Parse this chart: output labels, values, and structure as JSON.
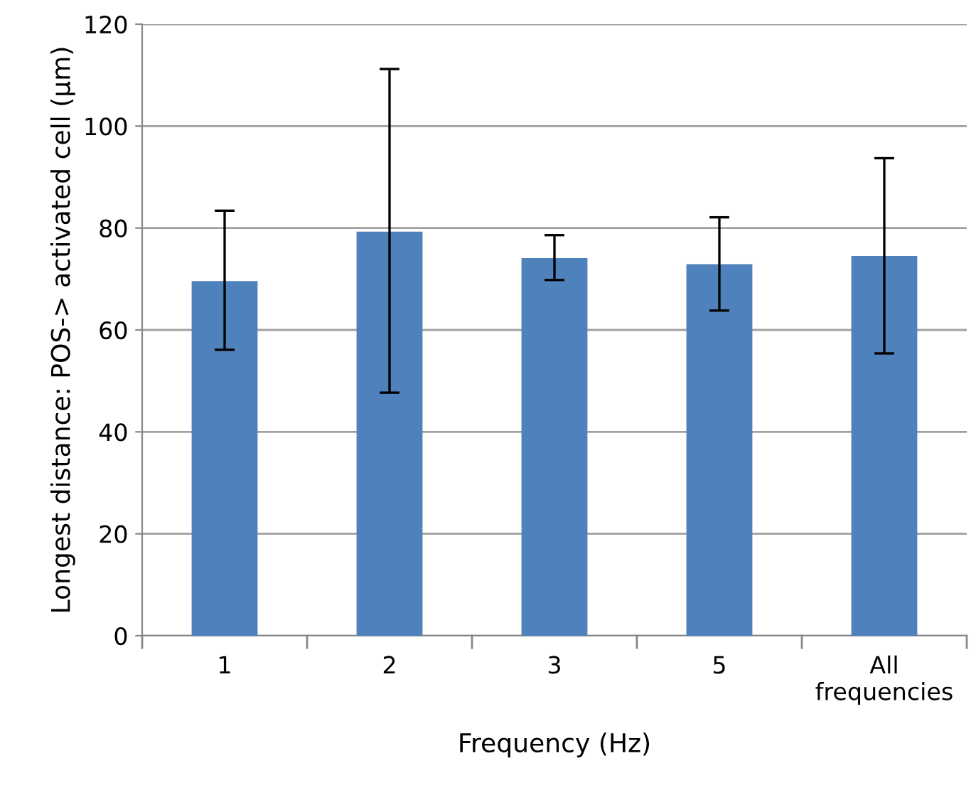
{
  "chart_data": {
    "type": "bar",
    "categories": [
      "1",
      "2",
      "3",
      "5",
      "All\nfrequencies"
    ],
    "values": [
      69.6,
      79.3,
      74.1,
      72.9,
      74.5
    ],
    "errors": [
      [
        56.1,
        83.4
      ],
      [
        47.7,
        111.2
      ],
      [
        69.8,
        78.6
      ],
      [
        63.8,
        82.1
      ],
      [
        55.4,
        93.7
      ]
    ],
    "color": "#4f81bd",
    "xlabel": "Frequency (Hz)",
    "ylabel": "Longest distance: POS-> activated cell (µm)",
    "ylim": [
      0,
      120
    ],
    "yticks": [
      0,
      20,
      40,
      60,
      80,
      100,
      120
    ],
    "grid": "y"
  }
}
